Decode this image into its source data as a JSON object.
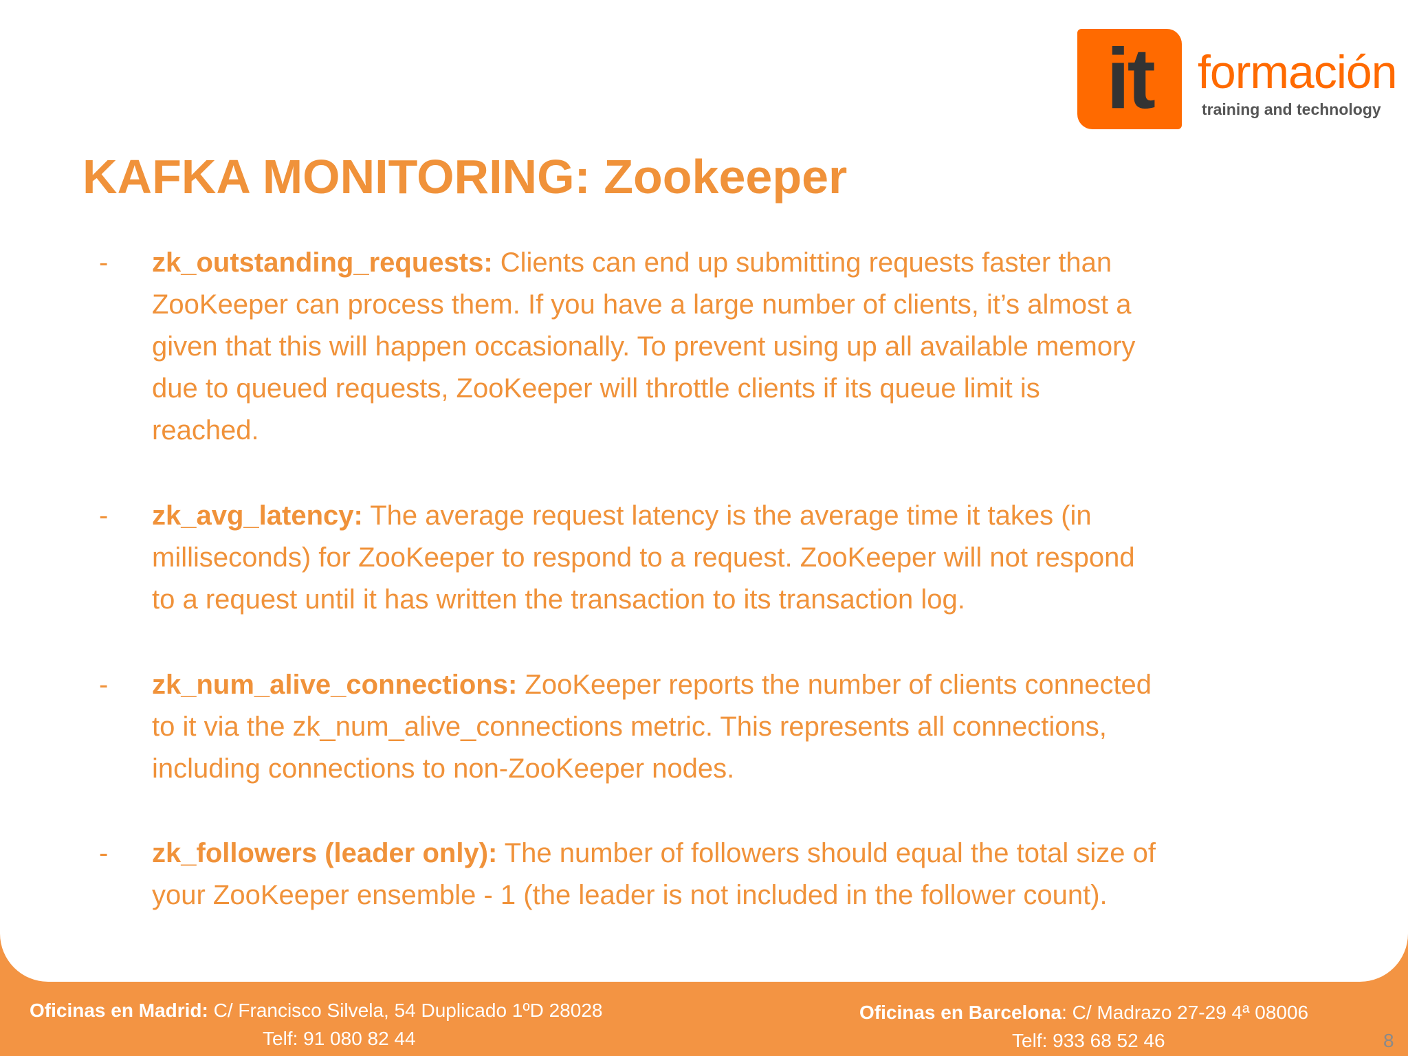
{
  "logo": {
    "mark": "it",
    "name": "formación",
    "tagline": "training and technology",
    "brand_color": "#FF6A00"
  },
  "title": "KAFKA MONITORING: Zookeeper",
  "accent_color": "#F0923A",
  "bullets": [
    {
      "term": "zk_outstanding_requests:",
      "lines": [
        " Clients can end up submitting requests faster than",
        "ZooKeeper can process them. If you have a large number of clients, it’s almost a",
        "given that this will happen occasionally. To prevent using up all available memory",
        "due to queued requests, ZooKeeper will throttle clients if its queue limit is",
        "reached."
      ]
    },
    {
      "term": "zk_avg_latency:",
      "lines": [
        " The average request latency is the average time it takes (in",
        "milliseconds) for ZooKeeper to respond to a request. ZooKeeper will not respond",
        "to a request until it has written the transaction to its transaction log."
      ]
    },
    {
      "term": "zk_num_alive_connections:",
      "lines": [
        " ZooKeeper reports the number of clients connected",
        "to it via the zk_num_alive_connections metric. This represents all connections,",
        "including connections to non-ZooKeeper nodes."
      ]
    },
    {
      "term": "zk_followers (leader only):",
      "lines": [
        " The number of followers should equal the total size of",
        "your ZooKeeper ensemble - 1 (the leader is not included in the follower count)."
      ]
    }
  ],
  "bullet_marker": "-",
  "footer": {
    "madrid_label": "Oficinas en Madrid:",
    "madrid_address": " C/ Francisco Silvela, 54 Duplicado 1ºD 28028",
    "madrid_phone": "Telf: 91 080 82 44",
    "barcelona_label": "Oficinas en Barcelona",
    "barcelona_address": ": C/ Madrazo  27-29 4ª 08006",
    "barcelona_phone": "Telf: 933 68 52 46",
    "background_color": "#F39443"
  },
  "slide_number": "8"
}
